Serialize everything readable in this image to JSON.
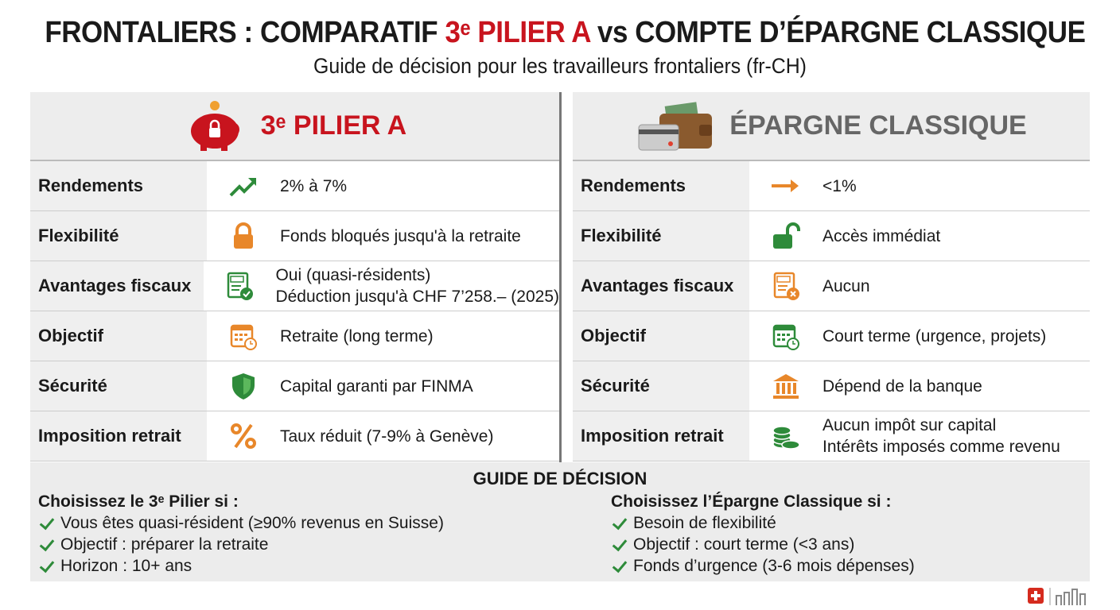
{
  "header": {
    "title": [
      "FRONTALIERS : COMPARATIF ",
      "3ᵉ PILIER A",
      " vs COMPTE D’ÉPARGNE CLASSIQUE"
    ],
    "subtitle": "Guide de décision pour les travailleurs frontaliers (fr-CH)"
  },
  "comparison": {
    "columns": [
      "3ᵉ PILIER A",
      "ÉPARGNE CLASSIQUE"
    ],
    "rows": [
      {
        "label": "Rendements",
        "left": [
          "2% à 7%"
        ],
        "right": [
          "<1%"
        ]
      },
      {
        "label": "Flexibilité",
        "left": [
          "Fonds bloqués jusqu'à la retraite"
        ],
        "right": [
          "Accès immédiat"
        ]
      },
      {
        "label": "Avantages fiscaux",
        "left": [
          "Oui (quasi-résidents)",
          "Déduction jusqu'à CHF 7’258.– (2025)"
        ],
        "right": [
          "Aucun"
        ]
      },
      {
        "label": "Objectif",
        "left": [
          "Retraite (long terme)"
        ],
        "right": [
          "Court terme (urgence, projets)"
        ]
      },
      {
        "label": "Sécurité",
        "left": [
          "Capital garanti par FINMA"
        ],
        "right": [
          "Dépend de la banque"
        ]
      },
      {
        "label": "Imposition retrait",
        "left": [
          "Taux réduit (7-9% à Genève)"
        ],
        "right": [
          "Aucun impôt sur capital",
          "Intérêts imposés comme revenu"
        ]
      }
    ]
  },
  "guide": {
    "title": "GUIDE DE DÉCISION",
    "left": {
      "heading": "Choisissez le 3ᵉ Pilier si :",
      "items": [
        "Vous êtes quasi-résident (≥90% revenus en Suisse)",
        "Objectif : préparer la retraite",
        "Horizon : 10+ ans"
      ]
    },
    "right": {
      "heading": "Choisissez l’Épargne Classique si :",
      "items": [
        "Besoin de flexibilité",
        "Objectif : court terme (<3 ans)",
        "Fonds d’urgence (3-6 mois dépenses)"
      ]
    }
  }
}
